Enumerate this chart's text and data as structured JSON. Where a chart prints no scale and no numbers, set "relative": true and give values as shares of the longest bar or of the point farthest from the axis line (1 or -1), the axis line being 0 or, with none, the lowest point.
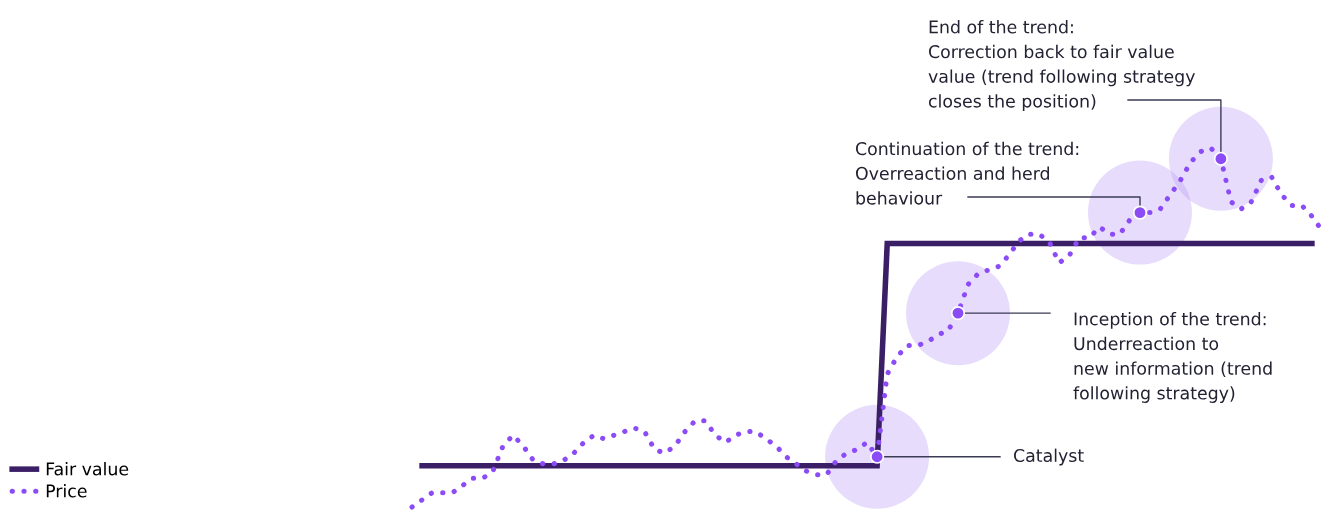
{
  "chart_data": {
    "type": "line",
    "relative": true,
    "legend": "bottom left",
    "marker": "none",
    "categories": [
      null,
      null,
      null,
      null,
      null,
      null,
      null,
      null,
      null,
      null,
      null,
      null,
      null,
      null,
      null,
      null,
      null,
      null,
      null,
      null,
      null,
      null,
      null,
      null,
      null,
      null,
      null,
      null,
      null,
      null,
      null,
      null,
      null,
      null,
      null,
      null,
      null,
      null,
      null,
      null,
      null,
      null,
      null,
      null,
      null,
      null,
      null,
      null,
      null,
      null,
      null,
      null,
      null,
      null,
      null,
      null,
      null,
      null,
      null,
      null,
      null,
      null,
      null,
      null,
      null,
      null,
      null,
      null,
      null,
      null,
      null,
      null,
      null,
      null,
      null,
      null,
      null,
      null,
      null,
      null,
      null,
      null,
      null,
      null,
      null,
      null,
      null,
      null,
      null,
      null,
      null
    ],
    "series": [
      {
        "name": "Fair value",
        "color": "#3b1f66",
        "line_style": "solid",
        "values": [
          null,
          0.115,
          0.115,
          0.115,
          0.115,
          0.115,
          0.115,
          0.115,
          0.115,
          0.115,
          0.115,
          0.115,
          0.115,
          0.115,
          0.115,
          0.115,
          0.115,
          0.115,
          0.115,
          0.115,
          0.115,
          0.115,
          0.115,
          0.115,
          0.115,
          0.115,
          0.115,
          0.115,
          0.115,
          0.115,
          0.115,
          0.115,
          0.115,
          0.115,
          0.115,
          0.115,
          0.115,
          0.115,
          0.115,
          0.115,
          0.115,
          0.115,
          0.115,
          0.115,
          0.115,
          0.115,
          0.115,
          0.734,
          0.734,
          0.734,
          0.734,
          0.734,
          0.734,
          0.734,
          0.734,
          0.734,
          0.734,
          0.734,
          0.734,
          0.734,
          0.734,
          0.734,
          0.734,
          0.734,
          0.734,
          0.734,
          0.734,
          0.734,
          0.734,
          0.734,
          0.734,
          0.734,
          0.734,
          0.734,
          0.734,
          0.734,
          0.734,
          0.734,
          0.734,
          0.734,
          0.734,
          0.734,
          0.734,
          0.734,
          0.734,
          0.734,
          0.734,
          0.734,
          0.734,
          0.734,
          null
        ]
      },
      {
        "name": "Price",
        "color": "#8c4cf5",
        "line_style": "dotted",
        "values": [
          0.0,
          0.02,
          0.04,
          0.04,
          0.04,
          0.06,
          0.08,
          0.08,
          0.1,
          0.17,
          0.2,
          0.17,
          0.13,
          0.12,
          0.12,
          0.13,
          0.15,
          0.18,
          0.2,
          0.19,
          0.2,
          0.21,
          0.22,
          0.21,
          0.16,
          0.15,
          0.17,
          0.21,
          0.24,
          0.24,
          0.2,
          0.18,
          0.2,
          0.21,
          0.21,
          0.19,
          0.17,
          0.14,
          0.12,
          0.1,
          0.09,
          0.09,
          0.13,
          0.15,
          0.16,
          0.18,
          0.14,
          0.37,
          0.42,
          0.45,
          0.45,
          0.46,
          0.48,
          0.49,
          0.54,
          0.62,
          0.65,
          0.66,
          0.67,
          0.7,
          0.74,
          0.76,
          0.76,
          0.74,
          0.68,
          0.7,
          0.75,
          0.75,
          0.78,
          0.76,
          0.76,
          0.8,
          0.82,
          0.82,
          0.83,
          0.87,
          0.91,
          0.96,
          0.99,
          1.0,
          0.97,
          0.85,
          0.83,
          0.85,
          0.91,
          0.92,
          0.87,
          0.84,
          0.84,
          0.81,
          0.77
        ]
      }
    ],
    "annotations": [
      "Catalyst",
      "Inception of the trend:\nUnderreaction to\nnew information (trend\nfollowing strategy)",
      "Continuation of the trend:\nOverreaction and herd\nbehaviour",
      "End of the trend:\nCorrection back to fair value\nvalue (trend following strategy\ncloses the position)"
    ]
  }
}
